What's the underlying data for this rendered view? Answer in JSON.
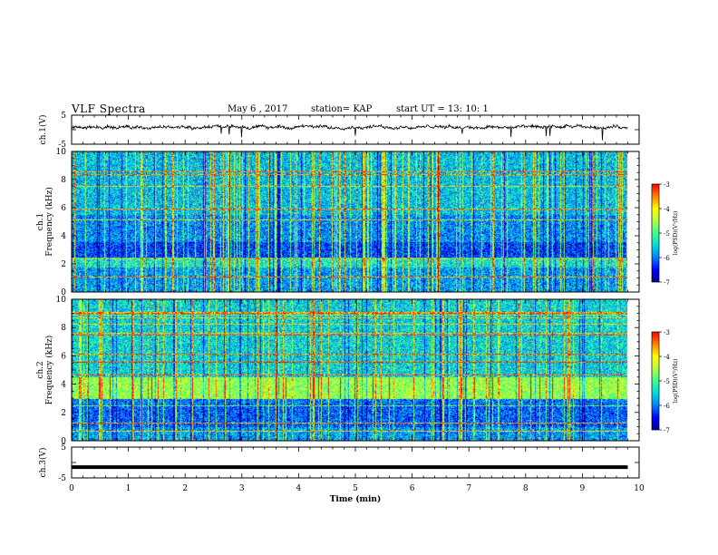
{
  "header": {
    "title": "VLF Spectra",
    "date": "May 6 , 2017",
    "station": "station= KAP",
    "start": "start UT = 13: 10: 1"
  },
  "chart_data": [
    {
      "type": "line",
      "name": "ch1-waveform",
      "ylabel": "ch.1(V)",
      "ylim": [
        -5,
        5
      ],
      "yticks": [
        "5",
        "-5"
      ],
      "xlim": [
        0,
        10
      ],
      "note_values": "noisy trace centered near +1 V between 0 and 9.8 min"
    },
    {
      "type": "heatmap",
      "name": "ch1-spectrogram",
      "ylabel": "ch.1 Frequency (kHz)",
      "ylim": [
        0,
        10
      ],
      "yticks": [
        "0",
        "2",
        "4",
        "6",
        "8",
        "10"
      ],
      "xlim": [
        0,
        9.8
      ],
      "colorbar": {
        "label": "log(PSD)(V²/Hz)",
        "range": [
          -7,
          -3
        ],
        "ticks": [
          "-3",
          "-4",
          "-5",
          "-6",
          "-7"
        ]
      }
    },
    {
      "type": "heatmap",
      "name": "ch2-spectrogram",
      "ylabel": "ch.2 Frequency (kHz)",
      "ylim": [
        0,
        10
      ],
      "yticks": [
        "0",
        "2",
        "4",
        "6",
        "8",
        "10"
      ],
      "xlim": [
        0,
        9.8
      ],
      "colorbar": {
        "label": "log(PSD)(V²/Hz)",
        "range": [
          -7,
          -3
        ],
        "ticks": [
          "-3",
          "-4",
          "-5",
          "-6",
          "-7"
        ]
      }
    },
    {
      "type": "line",
      "name": "ch3-waveform",
      "ylabel": "ch.3(V)",
      "ylim": [
        -5,
        5
      ],
      "yticks": [
        "5",
        "-5"
      ],
      "xlim": [
        0,
        10
      ],
      "values_constant": -1.5
    }
  ],
  "x_axis": {
    "xlabel": "Time (min)",
    "ticks": [
      "0",
      "1",
      "2",
      "3",
      "4",
      "5",
      "6",
      "7",
      "8",
      "9",
      "10"
    ]
  },
  "colors": {
    "colormap": [
      "#00008f",
      "#0000ff",
      "#00bfff",
      "#00ff7f",
      "#ffff00",
      "#ff8000",
      "#ff0000",
      "#ff9999",
      "#ffffff"
    ]
  }
}
